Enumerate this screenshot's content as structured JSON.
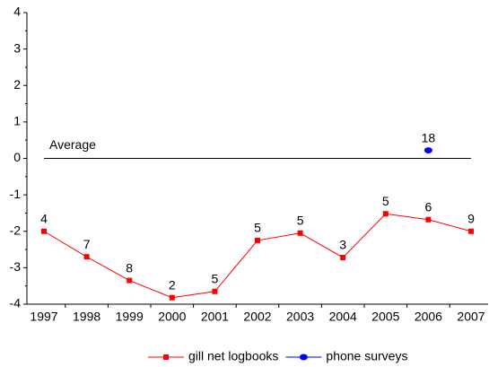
{
  "chart_data": {
    "type": "line",
    "categories": [
      "1997",
      "1998",
      "1999",
      "2000",
      "2001",
      "2002",
      "2003",
      "2004",
      "2005",
      "2006",
      "2007"
    ],
    "series": [
      {
        "name": "gill net logbooks",
        "color": "#ff0000",
        "marker": "square",
        "values": [
          -2.0,
          -2.7,
          -3.35,
          -3.82,
          -3.65,
          -2.25,
          -2.05,
          -2.72,
          -1.52,
          -1.68,
          -2.0
        ],
        "labels": [
          4,
          7,
          8,
          2,
          5,
          5,
          5,
          3,
          5,
          6,
          9
        ]
      },
      {
        "name": "phone surveys",
        "color": "#0000ff",
        "marker": "circle",
        "values": [
          null,
          null,
          null,
          null,
          null,
          null,
          null,
          null,
          null,
          0.22,
          null
        ],
        "labels": [
          null,
          null,
          null,
          null,
          null,
          null,
          null,
          null,
          null,
          18,
          null
        ]
      }
    ],
    "reference_line": {
      "label": "Average",
      "value": 0
    },
    "ylim": [
      -4,
      4
    ],
    "yticks": [
      -4,
      -3,
      -2,
      -1,
      0,
      1,
      2,
      3,
      4
    ],
    "legend": "bottom"
  }
}
